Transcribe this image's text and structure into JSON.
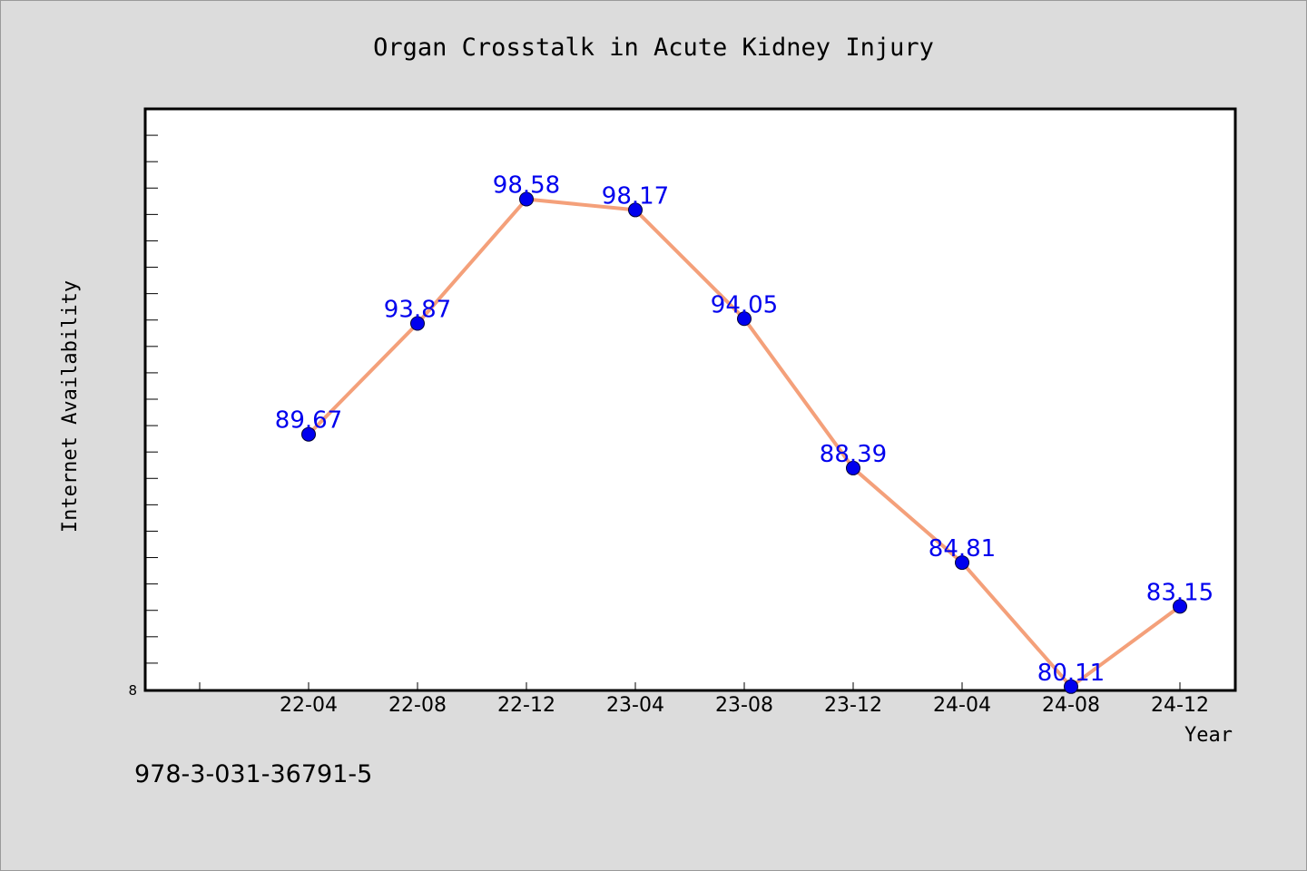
{
  "chart_data": {
    "type": "line",
    "title": "Organ Crosstalk in Acute Kidney Injury",
    "xlabel": "Year",
    "ylabel": "Internet Availability",
    "categories": [
      "22-04",
      "22-08",
      "22-12",
      "23-04",
      "23-08",
      "23-12",
      "24-04",
      "24-08",
      "24-12"
    ],
    "series": [
      {
        "values": [
          89.67,
          93.87,
          98.58,
          98.17,
          94.05,
          88.39,
          84.81,
          80.11,
          83.15
        ],
        "data_labels": [
          "89.67",
          "93.87",
          "98.58",
          "98.17",
          "94.05",
          "88.39",
          "84.81",
          "80.11",
          "83.15"
        ]
      }
    ],
    "y_min_label": "8",
    "ylim": [
      80,
      102
    ],
    "grid": false,
    "legend": "none",
    "line_color": "#f4a07a",
    "marker_color": "#0000ee",
    "label_color": "#0000ee"
  },
  "footer": {
    "isbn": "978-3-031-36791-5"
  }
}
